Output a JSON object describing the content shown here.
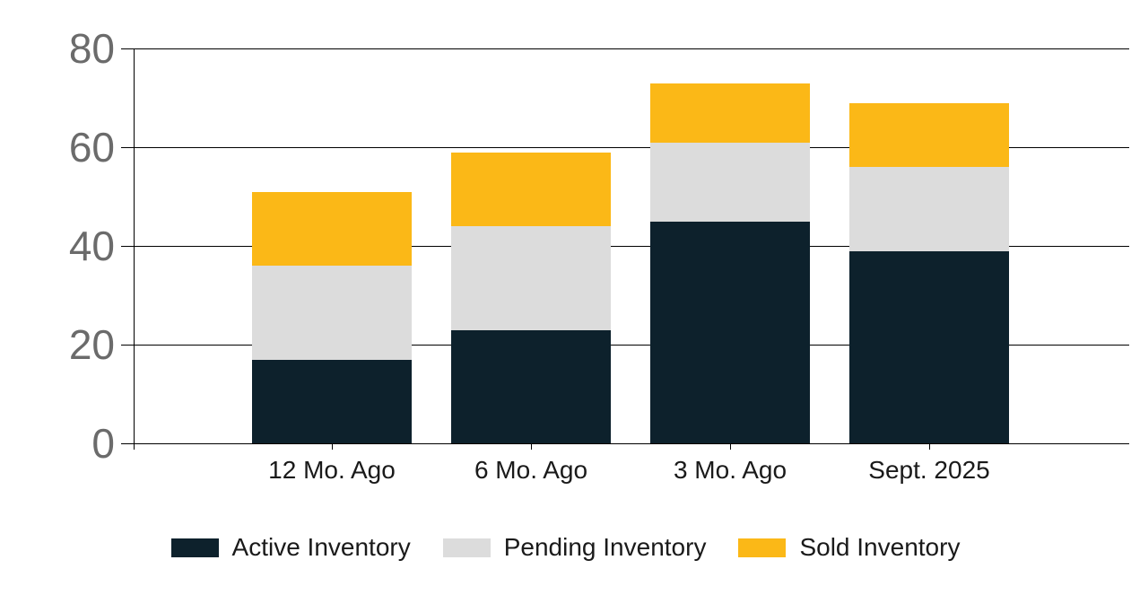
{
  "chart_data": {
    "type": "bar",
    "stacked": true,
    "categories": [
      "12 Mo. Ago",
      "6 Mo. Ago",
      "3 Mo. Ago",
      "Sept. 2025"
    ],
    "series": [
      {
        "name": "Active Inventory",
        "color": "#0d212c",
        "values": [
          17,
          23,
          45,
          39
        ]
      },
      {
        "name": "Pending Inventory",
        "color": "#dcdcdc",
        "values": [
          19,
          21,
          16,
          17
        ]
      },
      {
        "name": "Sold Inventory",
        "color": "#fbb817",
        "values": [
          15,
          15,
          12,
          13
        ]
      }
    ],
    "stack_totals": [
      51,
      59,
      73,
      69
    ],
    "ylim": [
      0,
      80
    ],
    "yticks": [
      0,
      20,
      40,
      60,
      80
    ],
    "grid": true,
    "legend_position": "bottom"
  },
  "colors": {
    "background": "#ffffff",
    "axis_line": "#000000",
    "gridline": "#000000",
    "y_tick_label": "#6b6b6b",
    "category_label": "#1a1a1a",
    "legend_text": "#1a1a1a"
  }
}
